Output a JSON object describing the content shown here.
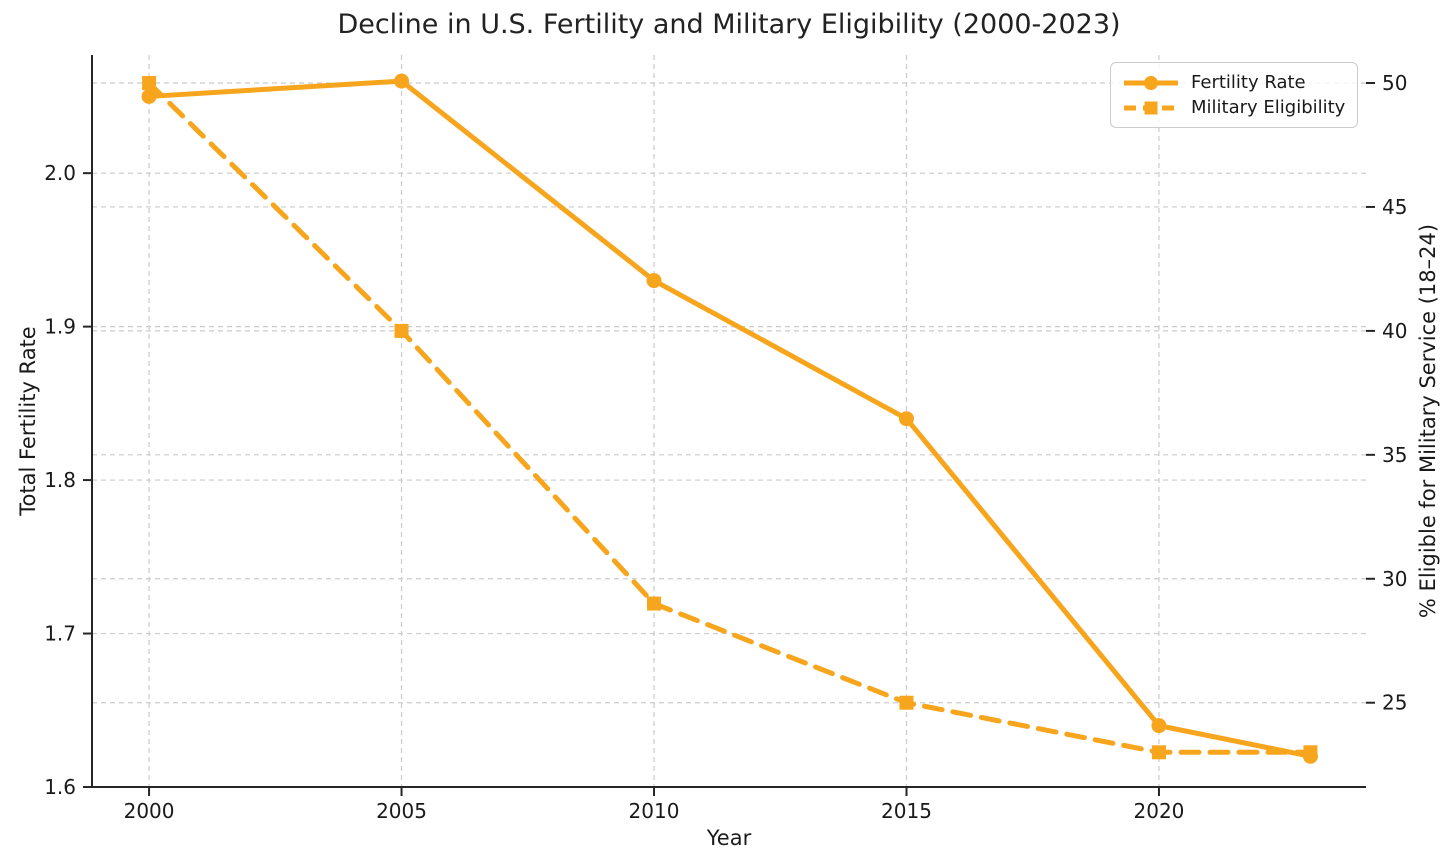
{
  "chart_data": {
    "type": "line",
    "title": "Decline in U.S. Fertility and Military Eligibility (2000-2023)",
    "xlabel": "Year",
    "ylabel_left": "Total Fertility Rate",
    "ylabel_right": "% Eligible for Military Service (18–24)",
    "x": [
      2000,
      2005,
      2010,
      2015,
      2020,
      2023
    ],
    "series": [
      {
        "name": "Fertility Rate",
        "axis": "left",
        "line_style": "solid",
        "marker": "circle",
        "values": [
          2.05,
          2.06,
          1.93,
          1.84,
          1.64,
          1.62
        ]
      },
      {
        "name": "Military Eligibility",
        "axis": "right",
        "line_style": "dashed",
        "marker": "square",
        "values": [
          50,
          40,
          29,
          25,
          23,
          23
        ]
      }
    ],
    "x_ticks": [
      2000,
      2005,
      2010,
      2015,
      2020
    ],
    "y_ticks_left": [
      1.6,
      1.7,
      1.8,
      1.9,
      2.0
    ],
    "y_ticks_right": [
      25,
      30,
      35,
      40,
      45,
      50
    ],
    "xlim": [
      1998.87,
      2024.1
    ],
    "ylim_left": [
      1.6,
      2.077
    ],
    "ylim_right": [
      21.6,
      51.13
    ],
    "grid": true,
    "legend_position": "upper right",
    "colors": {
      "series_color": "#F7A51C",
      "grid": "#CBCBCB",
      "axis": "#262626",
      "text": "#1A1A1A"
    }
  }
}
